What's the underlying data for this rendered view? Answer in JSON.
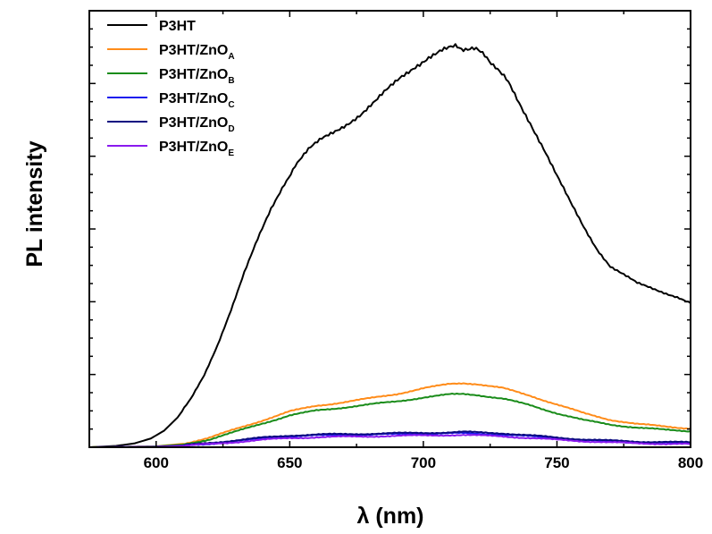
{
  "chart_data": {
    "type": "line",
    "xlabel": "λ (nm)",
    "ylabel": "PL intensity",
    "xlim": [
      575,
      800
    ],
    "ylim": [
      0,
      100
    ],
    "x_ticks": [
      600,
      650,
      700,
      750,
      800
    ],
    "y_tick_labels_shown": false,
    "grid": false,
    "legend_position": "top-left",
    "series": [
      {
        "name": "P3HT",
        "color": "#000000",
        "x": [
          575,
          585,
          592,
          598,
          603,
          608,
          613,
          618,
          623,
          628,
          633,
          638,
          643,
          648,
          652,
          657,
          662,
          667,
          672,
          677,
          682,
          687,
          692,
          697,
          702,
          707,
          712,
          715,
          719,
          723,
          727,
          731,
          735,
          740,
          745,
          750,
          755,
          760,
          765,
          770,
          775,
          780,
          785,
          790,
          795,
          800
        ],
        "values": [
          0,
          0.3,
          0.9,
          2.0,
          3.8,
          6.8,
          11.0,
          16.5,
          23.5,
          31.5,
          40,
          47.5,
          54.5,
          60.5,
          64.5,
          68,
          70.5,
          72.5,
          74.5,
          76.5,
          79,
          82,
          85,
          87.5,
          89.5,
          90.8,
          91.5,
          91.6,
          91,
          89.8,
          87.5,
          84,
          80,
          74.5,
          68.5,
          62,
          56,
          50.5,
          45.5,
          41.5,
          39.5,
          37.5,
          36.5,
          35.5,
          34.5,
          33
        ]
      },
      {
        "name": "P3HT/ZnOA",
        "subscript": "A",
        "color": "#ff8c1a",
        "x": [
          575,
          600,
          610,
          620,
          630,
          640,
          650,
          660,
          670,
          680,
          690,
          700,
          710,
          715,
          720,
          730,
          740,
          750,
          760,
          770,
          780,
          790,
          800
        ],
        "values": [
          0,
          0.2,
          0.8,
          2.2,
          4.2,
          6.2,
          8.2,
          9.5,
          10.3,
          11.2,
          12.2,
          13.5,
          14.5,
          14.7,
          14.5,
          13.5,
          11.8,
          9.8,
          7.8,
          6.3,
          5.3,
          4.8,
          4.3
        ]
      },
      {
        "name": "P3HT/ZnOB",
        "subscript": "B",
        "color": "#1a8c1a",
        "x": [
          575,
          600,
          610,
          620,
          630,
          640,
          650,
          660,
          670,
          680,
          690,
          700,
          710,
          715,
          720,
          730,
          740,
          750,
          760,
          770,
          780,
          790,
          800
        ],
        "values": [
          0,
          0.2,
          0.6,
          1.8,
          3.6,
          5.5,
          7.3,
          8.4,
          9.1,
          9.8,
          10.5,
          11.4,
          12.1,
          12.2,
          12.0,
          11.1,
          9.6,
          7.8,
          6.2,
          5.2,
          4.5,
          4.0,
          3.7
        ]
      },
      {
        "name": "P3HT/ZnOC",
        "subscript": "C",
        "color": "#1a1aee",
        "x": [
          575,
          600,
          610,
          620,
          630,
          640,
          650,
          660,
          670,
          680,
          690,
          700,
          710,
          715,
          720,
          730,
          740,
          750,
          760,
          770,
          780,
          790,
          800
        ],
        "values": [
          0,
          0.1,
          0.3,
          0.8,
          1.4,
          2.0,
          2.5,
          2.7,
          2.8,
          2.9,
          3.0,
          3.1,
          3.2,
          3.2,
          3.1,
          2.9,
          2.5,
          2.0,
          1.6,
          1.3,
          1.1,
          1.0,
          0.9
        ]
      },
      {
        "name": "P3HT/ZnOD",
        "subscript": "D",
        "color": "#0a0a80",
        "x": [
          575,
          600,
          610,
          620,
          630,
          640,
          650,
          660,
          670,
          680,
          690,
          700,
          710,
          715,
          720,
          730,
          740,
          750,
          760,
          770,
          780,
          790,
          800
        ],
        "values": [
          0,
          0.1,
          0.4,
          1.0,
          1.6,
          2.2,
          2.7,
          2.9,
          3.0,
          3.1,
          3.2,
          3.3,
          3.4,
          3.5,
          3.4,
          3.2,
          2.7,
          2.2,
          1.8,
          1.5,
          1.3,
          1.2,
          1.1
        ]
      },
      {
        "name": "P3HT/ZnOE",
        "subscript": "E",
        "color": "#8a1aee",
        "x": [
          575,
          600,
          610,
          620,
          630,
          640,
          650,
          660,
          670,
          680,
          690,
          700,
          710,
          715,
          720,
          730,
          740,
          750,
          760,
          770,
          780,
          790,
          800
        ],
        "values": [
          0,
          0.1,
          0.3,
          0.7,
          1.2,
          1.7,
          2.1,
          2.3,
          2.4,
          2.5,
          2.6,
          2.7,
          2.8,
          2.8,
          2.7,
          2.5,
          2.1,
          1.7,
          1.4,
          1.1,
          0.9,
          0.8,
          0.7
        ]
      }
    ]
  }
}
